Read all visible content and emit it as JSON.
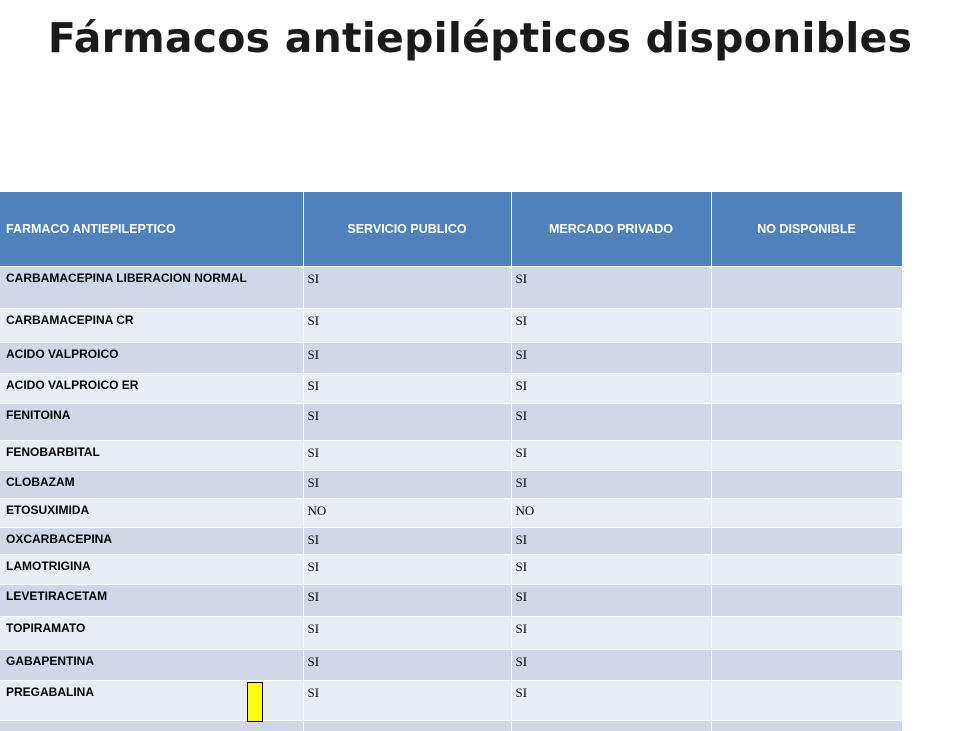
{
  "title": "Fármacos antiepilépticos disponibles",
  "table": {
    "headers": [
      "FARMACO ANTIEPILEPTICO",
      "SERVICIO PUBLICO",
      "MERCADO PRIVADO",
      "NO DISPONIBLE"
    ],
    "rows": [
      {
        "drug": "CARBAMACEPINA LIBERACION NORMAL",
        "publico": "SI",
        "privado": "SI",
        "no_disponible": ""
      },
      {
        "drug": "CARBAMACEPINA CR",
        "publico": "SI",
        "privado": "SI",
        "no_disponible": ""
      },
      {
        "drug": "ACIDO VALPROICO",
        "publico": "SI",
        "privado": "SI",
        "no_disponible": ""
      },
      {
        "drug": "ACIDO VALPROICO ER",
        "publico": "SI",
        "privado": "SI",
        "no_disponible": ""
      },
      {
        "drug": "FENITOINA",
        "publico": "SI",
        "privado": "SI",
        "no_disponible": ""
      },
      {
        "drug": "FENOBARBITAL",
        "publico": "SI",
        "privado": "SI",
        "no_disponible": ""
      },
      {
        "drug": "CLOBAZAM",
        "publico": "SI",
        "privado": "SI",
        "no_disponible": ""
      },
      {
        "drug": "ETOSUXIMIDA",
        "publico": "NO",
        "privado": "NO",
        "no_disponible": ""
      },
      {
        "drug": "OXCARBACEPINA",
        "publico": "SI",
        "privado": "SI",
        "no_disponible": ""
      },
      {
        "drug": "LAMOTRIGINA",
        "publico": "SI",
        "privado": "SI",
        "no_disponible": ""
      },
      {
        "drug": "LEVETIRACETAM",
        "publico": "SI",
        "privado": "SI",
        "no_disponible": ""
      },
      {
        "drug": "TOPIRAMATO",
        "publico": "SI",
        "privado": "SI",
        "no_disponible": ""
      },
      {
        "drug": "GABAPENTINA",
        "publico": "SI",
        "privado": "SI",
        "no_disponible": ""
      },
      {
        "drug": "PREGABALINA",
        "publico": "SI",
        "privado": "SI",
        "no_disponible": ""
      },
      {
        "drug": "",
        "publico": "",
        "privado": "",
        "no_disponible": ""
      }
    ]
  },
  "colors": {
    "header_bg": "#4f81bd",
    "row_odd": "#d0d8e8",
    "row_even": "#e9edf4",
    "marker": "#ffff00"
  }
}
